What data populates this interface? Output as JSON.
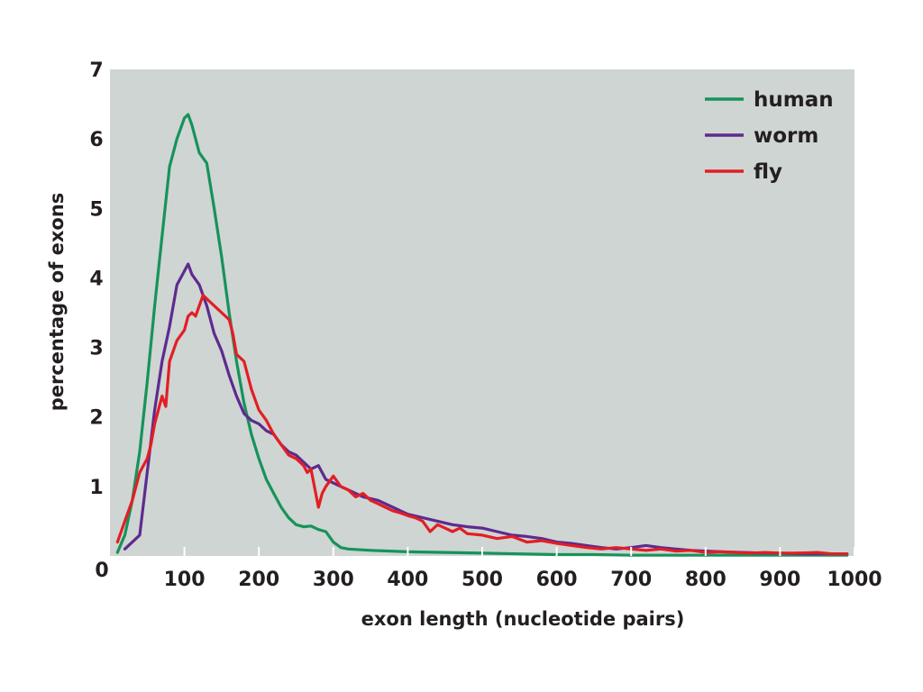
{
  "chart_data": {
    "type": "line",
    "xlabel": "exon length (nucleotide pairs)",
    "ylabel": "percentage of exons",
    "xlim": [
      0,
      1000
    ],
    "ylim": [
      0,
      7
    ],
    "x_ticks": [
      100,
      200,
      300,
      400,
      500,
      600,
      700,
      800,
      900,
      1000
    ],
    "y_ticks": [
      0,
      1,
      2,
      3,
      4,
      5,
      6,
      7
    ],
    "grid": false,
    "legend_position": "top-right",
    "colors": {
      "plot_background": "#cfd5d2",
      "human": "#16935a",
      "worm": "#5e2a8f",
      "fly": "#e31e24"
    },
    "series": [
      {
        "name": "human",
        "color": "#16935a",
        "x": [
          10,
          20,
          30,
          40,
          50,
          60,
          70,
          80,
          90,
          100,
          105,
          110,
          120,
          130,
          140,
          150,
          160,
          170,
          180,
          190,
          200,
          210,
          220,
          230,
          240,
          250,
          260,
          270,
          280,
          290,
          300,
          310,
          320,
          350,
          400,
          450,
          500,
          550,
          600,
          650,
          700,
          750,
          800,
          850,
          900,
          950,
          990
        ],
        "y": [
          0.05,
          0.3,
          0.8,
          1.5,
          2.5,
          3.6,
          4.6,
          5.6,
          6.0,
          6.3,
          6.35,
          6.2,
          5.8,
          5.65,
          5.0,
          4.3,
          3.5,
          2.8,
          2.2,
          1.75,
          1.4,
          1.1,
          0.9,
          0.7,
          0.55,
          0.45,
          0.42,
          0.43,
          0.38,
          0.35,
          0.2,
          0.12,
          0.1,
          0.08,
          0.06,
          0.05,
          0.04,
          0.03,
          0.02,
          0.02,
          0.01,
          0.01,
          0.01,
          0.01,
          0.01,
          0.01,
          0.01
        ]
      },
      {
        "name": "worm",
        "color": "#5e2a8f",
        "x": [
          20,
          40,
          50,
          60,
          70,
          80,
          90,
          100,
          105,
          110,
          120,
          130,
          140,
          150,
          160,
          170,
          180,
          190,
          200,
          210,
          220,
          230,
          240,
          250,
          260,
          270,
          280,
          290,
          300,
          310,
          320,
          330,
          340,
          360,
          380,
          400,
          420,
          440,
          460,
          480,
          500,
          520,
          540,
          560,
          580,
          600,
          620,
          640,
          660,
          680,
          700,
          720,
          740,
          760,
          780,
          800,
          820,
          850,
          880,
          900,
          930,
          960,
          990
        ],
        "y": [
          0.1,
          0.3,
          1.2,
          2.1,
          2.8,
          3.3,
          3.9,
          4.1,
          4.2,
          4.05,
          3.9,
          3.6,
          3.2,
          2.95,
          2.6,
          2.3,
          2.05,
          1.95,
          1.9,
          1.8,
          1.75,
          1.6,
          1.5,
          1.45,
          1.35,
          1.25,
          1.3,
          1.1,
          1.05,
          1.0,
          0.95,
          0.9,
          0.85,
          0.8,
          0.7,
          0.6,
          0.55,
          0.5,
          0.45,
          0.42,
          0.4,
          0.35,
          0.3,
          0.28,
          0.25,
          0.2,
          0.18,
          0.15,
          0.12,
          0.1,
          0.12,
          0.15,
          0.12,
          0.1,
          0.08,
          0.07,
          0.06,
          0.05,
          0.04,
          0.04,
          0.03,
          0.03,
          0.03
        ]
      },
      {
        "name": "fly",
        "color": "#e31e24",
        "x": [
          10,
          20,
          30,
          40,
          50,
          55,
          60,
          70,
          75,
          80,
          90,
          100,
          105,
          110,
          115,
          120,
          125,
          130,
          140,
          150,
          160,
          165,
          170,
          180,
          190,
          200,
          210,
          220,
          230,
          240,
          250,
          260,
          265,
          270,
          280,
          285,
          290,
          300,
          310,
          320,
          330,
          340,
          350,
          360,
          370,
          380,
          390,
          400,
          410,
          420,
          430,
          440,
          450,
          460,
          470,
          480,
          500,
          520,
          540,
          560,
          580,
          600,
          620,
          640,
          660,
          680,
          700,
          720,
          740,
          760,
          780,
          800,
          820,
          840,
          860,
          880,
          900,
          920,
          950,
          970,
          990
        ],
        "y": [
          0.2,
          0.5,
          0.8,
          1.2,
          1.4,
          1.6,
          1.9,
          2.3,
          2.15,
          2.8,
          3.1,
          3.25,
          3.45,
          3.5,
          3.45,
          3.6,
          3.75,
          3.7,
          3.6,
          3.5,
          3.4,
          3.2,
          2.9,
          2.8,
          2.4,
          2.1,
          1.95,
          1.75,
          1.6,
          1.45,
          1.4,
          1.3,
          1.2,
          1.25,
          0.7,
          0.9,
          1.0,
          1.15,
          1.0,
          0.95,
          0.85,
          0.9,
          0.8,
          0.75,
          0.7,
          0.65,
          0.62,
          0.58,
          0.55,
          0.5,
          0.35,
          0.45,
          0.4,
          0.35,
          0.4,
          0.32,
          0.3,
          0.25,
          0.28,
          0.2,
          0.22,
          0.18,
          0.15,
          0.12,
          0.1,
          0.12,
          0.1,
          0.08,
          0.1,
          0.07,
          0.08,
          0.05,
          0.06,
          0.05,
          0.04,
          0.05,
          0.04,
          0.04,
          0.05,
          0.03,
          0.03
        ]
      }
    ]
  }
}
